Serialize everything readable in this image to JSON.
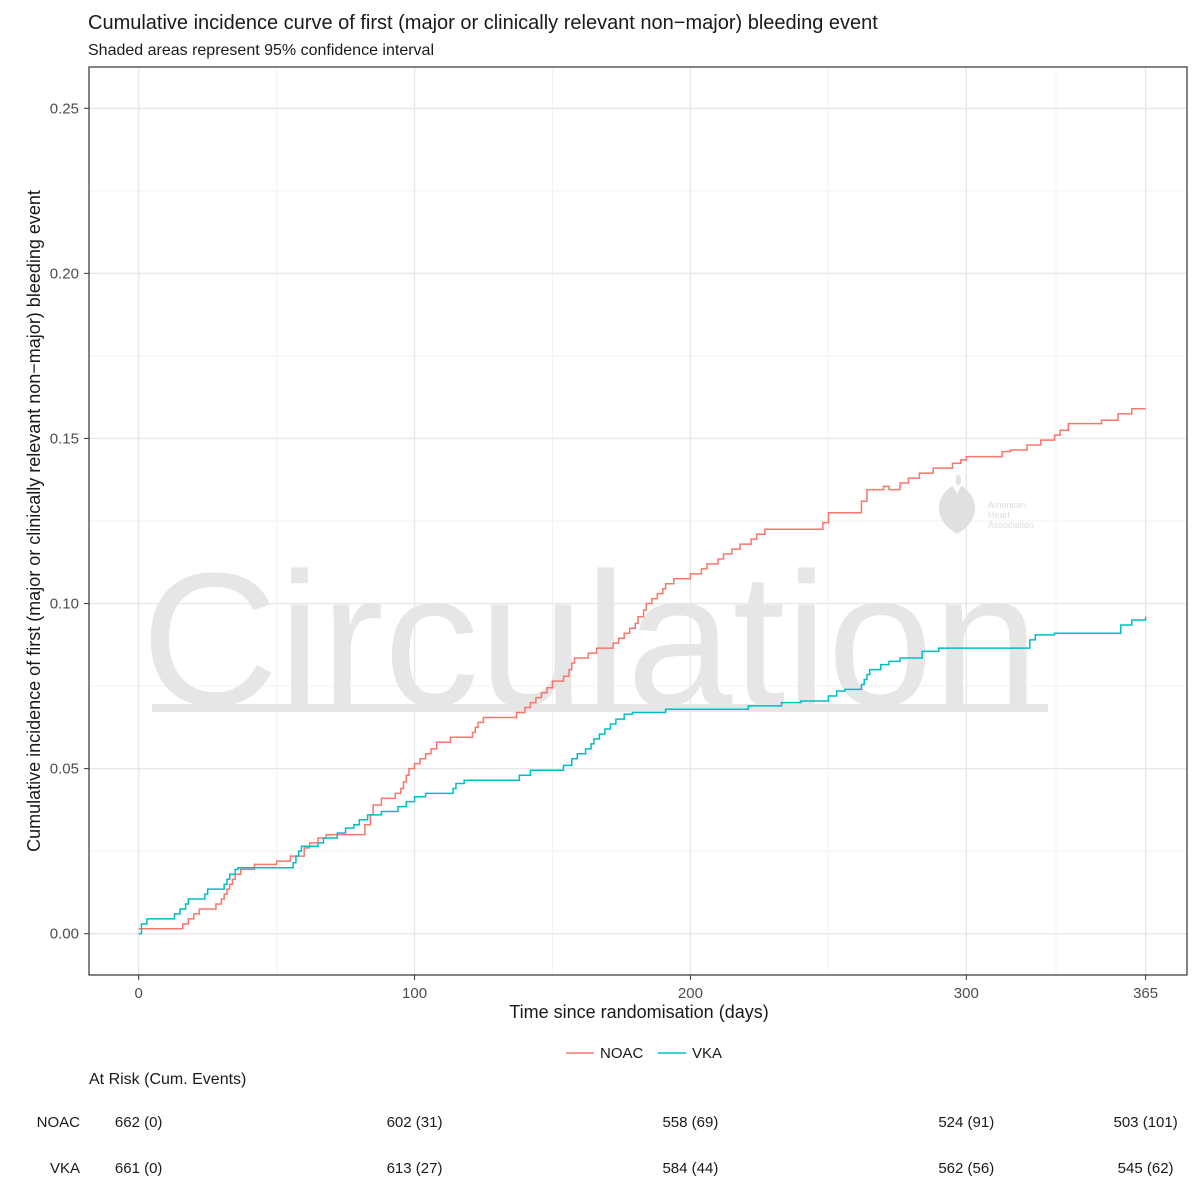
{
  "chart_data": {
    "type": "line",
    "title": "Cumulative incidence curve of first (major or clinically relevant non−major) bleeding event",
    "subtitle": "Shaded areas represent 95% confidence interval",
    "xlabel": "Time since randomisation (days)",
    "ylabel": "Cumulative incidence of first (major or clinically relevant non−major) bleeding event",
    "xlim": [
      -18,
      380
    ],
    "ylim": [
      -0.0125,
      0.2625
    ],
    "x_ticks": [
      0,
      100,
      200,
      300,
      365
    ],
    "x_tick_labels": [
      "0",
      "100",
      "200",
      "300",
      "365"
    ],
    "y_ticks": [
      0.0,
      0.05,
      0.1,
      0.15,
      0.2,
      0.25
    ],
    "y_tick_labels": [
      "0.00",
      "0.05",
      "0.10",
      "0.15",
      "0.20",
      "0.25"
    ],
    "grid": true,
    "legend_position": "bottom",
    "series": [
      {
        "name": "NOAC",
        "color": "#F8766D",
        "step": true,
        "points": [
          [
            0,
            0.0015
          ],
          [
            14,
            0.0015
          ],
          [
            16,
            0.003
          ],
          [
            18,
            0.0045
          ],
          [
            20,
            0.006
          ],
          [
            22,
            0.0075
          ],
          [
            28,
            0.009
          ],
          [
            30,
            0.0105
          ],
          [
            31,
            0.012
          ],
          [
            32,
            0.0135
          ],
          [
            33,
            0.015
          ],
          [
            34,
            0.0165
          ],
          [
            35,
            0.018
          ],
          [
            37,
            0.0195
          ],
          [
            42,
            0.021
          ],
          [
            50,
            0.022
          ],
          [
            55,
            0.0235
          ],
          [
            60,
            0.026
          ],
          [
            62,
            0.0275
          ],
          [
            65,
            0.029
          ],
          [
            68,
            0.03
          ],
          [
            82,
            0.033
          ],
          [
            84,
            0.036
          ],
          [
            85,
            0.039
          ],
          [
            88,
            0.041
          ],
          [
            93,
            0.0425
          ],
          [
            95,
            0.044
          ],
          [
            96,
            0.046
          ],
          [
            97,
            0.048
          ],
          [
            98,
            0.05
          ],
          [
            100,
            0.0515
          ],
          [
            102,
            0.053
          ],
          [
            104,
            0.0545
          ],
          [
            106,
            0.056
          ],
          [
            108,
            0.058
          ],
          [
            113,
            0.0595
          ],
          [
            121,
            0.061
          ],
          [
            122,
            0.0625
          ],
          [
            123,
            0.064
          ],
          [
            125,
            0.0655
          ],
          [
            137,
            0.067
          ],
          [
            140,
            0.0685
          ],
          [
            142,
            0.07
          ],
          [
            144,
            0.0715
          ],
          [
            146,
            0.073
          ],
          [
            148,
            0.0745
          ],
          [
            150,
            0.0765
          ],
          [
            154,
            0.078
          ],
          [
            156,
            0.08
          ],
          [
            157,
            0.082
          ],
          [
            158,
            0.0835
          ],
          [
            163,
            0.085
          ],
          [
            166,
            0.0865
          ],
          [
            172,
            0.088
          ],
          [
            174,
            0.0895
          ],
          [
            176,
            0.091
          ],
          [
            178,
            0.0925
          ],
          [
            180,
            0.094
          ],
          [
            181,
            0.096
          ],
          [
            183,
            0.098
          ],
          [
            184,
            0.1
          ],
          [
            186,
            0.1015
          ],
          [
            188,
            0.103
          ],
          [
            190,
            0.1045
          ],
          [
            191,
            0.106
          ],
          [
            194,
            0.1075
          ],
          [
            200,
            0.109
          ],
          [
            204,
            0.1105
          ],
          [
            206,
            0.112
          ],
          [
            210,
            0.1135
          ],
          [
            212,
            0.115
          ],
          [
            215,
            0.1165
          ],
          [
            218,
            0.118
          ],
          [
            222,
            0.1195
          ],
          [
            224,
            0.121
          ],
          [
            227,
            0.1225
          ],
          [
            248,
            0.1245
          ],
          [
            250,
            0.1275
          ],
          [
            262,
            0.131
          ],
          [
            264,
            0.1345
          ],
          [
            270,
            0.1355
          ],
          [
            272,
            0.1345
          ],
          [
            276,
            0.1365
          ],
          [
            279,
            0.138
          ],
          [
            283,
            0.1395
          ],
          [
            288,
            0.141
          ],
          [
            295,
            0.1425
          ],
          [
            298,
            0.1435
          ],
          [
            300,
            0.1445
          ],
          [
            313,
            0.146
          ],
          [
            316,
            0.1465
          ],
          [
            322,
            0.148
          ],
          [
            327,
            0.1495
          ],
          [
            332,
            0.151
          ],
          [
            334,
            0.1525
          ],
          [
            337,
            0.1545
          ],
          [
            349,
            0.1555
          ],
          [
            355,
            0.1575
          ],
          [
            360,
            0.159
          ],
          [
            365,
            0.159
          ]
        ]
      },
      {
        "name": "VKA",
        "color": "#00BFC4",
        "step": true,
        "points": [
          [
            0,
            0.0
          ],
          [
            1,
            0.003
          ],
          [
            3,
            0.0045
          ],
          [
            13,
            0.006
          ],
          [
            15,
            0.0075
          ],
          [
            17,
            0.009
          ],
          [
            18,
            0.0105
          ],
          [
            24,
            0.012
          ],
          [
            25,
            0.0135
          ],
          [
            31,
            0.015
          ],
          [
            32,
            0.0165
          ],
          [
            33,
            0.018
          ],
          [
            35,
            0.0195
          ],
          [
            36,
            0.02
          ],
          [
            56,
            0.0215
          ],
          [
            57,
            0.0235
          ],
          [
            58,
            0.025
          ],
          [
            59,
            0.0265
          ],
          [
            65,
            0.0275
          ],
          [
            67,
            0.029
          ],
          [
            72,
            0.0305
          ],
          [
            75,
            0.032
          ],
          [
            78,
            0.033
          ],
          [
            80,
            0.0345
          ],
          [
            83,
            0.036
          ],
          [
            88,
            0.037
          ],
          [
            94,
            0.0385
          ],
          [
            97,
            0.04
          ],
          [
            100,
            0.0415
          ],
          [
            104,
            0.0425
          ],
          [
            114,
            0.044
          ],
          [
            115,
            0.0455
          ],
          [
            118,
            0.0465
          ],
          [
            138,
            0.048
          ],
          [
            142,
            0.0495
          ],
          [
            154,
            0.051
          ],
          [
            157,
            0.053
          ],
          [
            159,
            0.0545
          ],
          [
            162,
            0.056
          ],
          [
            164,
            0.0575
          ],
          [
            165,
            0.059
          ],
          [
            167,
            0.0605
          ],
          [
            169,
            0.062
          ],
          [
            171,
            0.0635
          ],
          [
            173,
            0.065
          ],
          [
            176,
            0.0665
          ],
          [
            179,
            0.067
          ],
          [
            191,
            0.068
          ],
          [
            221,
            0.069
          ],
          [
            233,
            0.07
          ],
          [
            240,
            0.0705
          ],
          [
            250,
            0.072
          ],
          [
            253,
            0.0735
          ],
          [
            256,
            0.074
          ],
          [
            262,
            0.0755
          ],
          [
            263,
            0.077
          ],
          [
            264,
            0.0785
          ],
          [
            265,
            0.08
          ],
          [
            269,
            0.0815
          ],
          [
            272,
            0.0825
          ],
          [
            276,
            0.0835
          ],
          [
            284,
            0.0855
          ],
          [
            290,
            0.0865
          ],
          [
            300,
            0.0865
          ],
          [
            323,
            0.089
          ],
          [
            325,
            0.0905
          ],
          [
            332,
            0.091
          ],
          [
            356,
            0.0935
          ],
          [
            360,
            0.095
          ],
          [
            365,
            0.096
          ]
        ]
      }
    ],
    "risk_table": {
      "header": "At Risk (Cum. Events)",
      "rows": [
        {
          "label": "NOAC",
          "cells": [
            {
              "x": 0,
              "text": "662 (0)"
            },
            {
              "x": 100,
              "text": "602 (31)"
            },
            {
              "x": 200,
              "text": "558 (69)"
            },
            {
              "x": 300,
              "text": "524 (91)"
            },
            {
              "x": 365,
              "text": "503 (101)"
            }
          ]
        },
        {
          "label": "VKA",
          "cells": [
            {
              "x": 0,
              "text": "661 (0)"
            },
            {
              "x": 100,
              "text": "613 (27)"
            },
            {
              "x": 200,
              "text": "584 (44)"
            },
            {
              "x": 300,
              "text": "562 (56)"
            },
            {
              "x": 365,
              "text": "545 (62)"
            }
          ]
        }
      ]
    }
  },
  "watermark": {
    "text": "Circulation",
    "logo_lines": [
      "American",
      "Heart",
      "Association"
    ]
  }
}
